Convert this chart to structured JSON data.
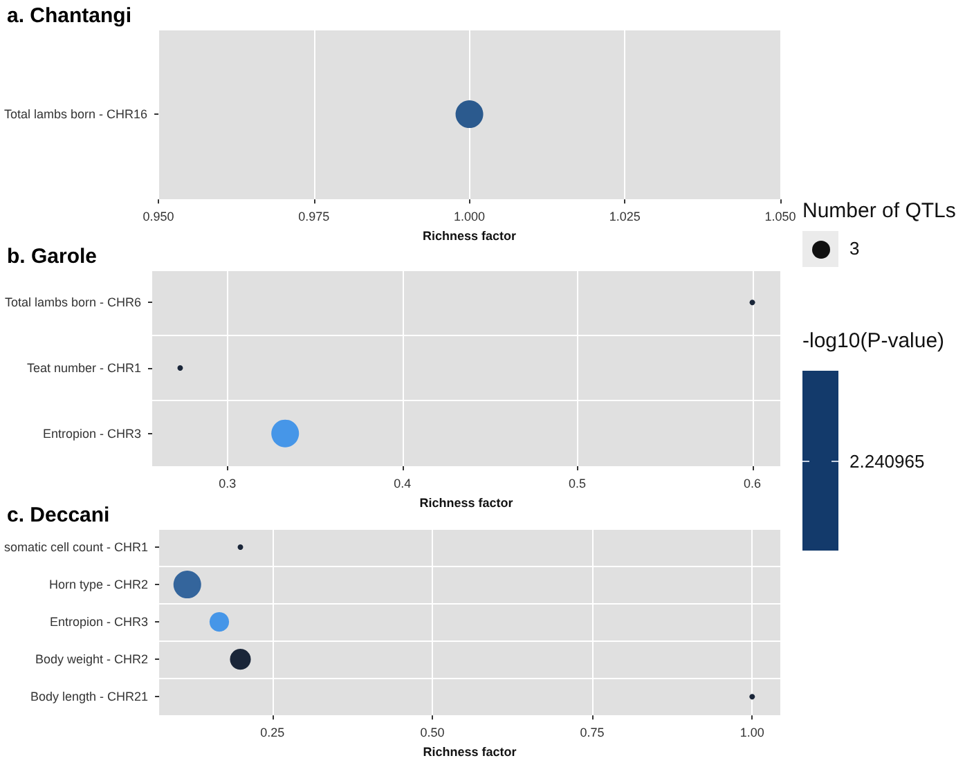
{
  "chart_data": [
    {
      "type": "bubble",
      "title": "a. Chantangi",
      "xlabel": "Richness factor",
      "orientation": "horizontal",
      "categories": [
        "Total lambs born - CHR16"
      ],
      "values": [
        1.0
      ],
      "sizes": [
        1
      ],
      "colors": [
        "#2b5a8e"
      ],
      "xlim": [
        0.95,
        1.05
      ],
      "xticks": [
        {
          "value": 0.95,
          "label": "0.950"
        },
        {
          "value": 0.975,
          "label": "0.975"
        },
        {
          "value": 1.0,
          "label": "1.000"
        },
        {
          "value": 1.025,
          "label": "1.025"
        },
        {
          "value": 1.05,
          "label": "1.050"
        }
      ],
      "grid": true
    },
    {
      "type": "bubble",
      "title": "b. Garole",
      "xlabel": "Richness factor",
      "orientation": "horizontal",
      "categories": [
        "Total lambs born - CHR6",
        "Teat number - CHR1",
        "Entropion - CHR3"
      ],
      "values": [
        0.6,
        0.273,
        0.333
      ],
      "sizes": [
        0.04,
        0.04,
        1
      ],
      "colors": [
        "#1a2639",
        "#1a2639",
        "#4696e8"
      ],
      "xlim": [
        0.257,
        0.616
      ],
      "xticks": [
        0.3,
        0.4,
        0.5,
        0.6
      ],
      "grid": true,
      "legend_title": "Number of QTLs",
      "clabel": "-log10(P-value)",
      "annotations": [
        "3",
        "2.240965"
      ]
    },
    {
      "type": "bubble",
      "title": "c. Deccani",
      "xlabel": "Richness factor",
      "orientation": "horizontal",
      "categories": [
        "somatic cell count - CHR1",
        "Horn type - CHR2",
        "Entropion - CHR3",
        "Body weight - CHR2",
        "Body length - CHR21"
      ],
      "values": [
        0.2,
        0.117,
        0.167,
        0.2,
        1.0
      ],
      "sizes": [
        0.04,
        1,
        0.5,
        0.57,
        0.04
      ],
      "colors": [
        "#1a2639",
        "#34659c",
        "#4696e8",
        "#1a2639",
        "#1a2639"
      ],
      "xlim": [
        0.073,
        1.044
      ],
      "xticks": [
        {
          "value": 0.25,
          "label": "0.25"
        },
        {
          "value": 0.5,
          "label": "0.50"
        },
        {
          "value": 0.75,
          "label": "0.75"
        },
        {
          "value": 1.0,
          "label": "1.00"
        }
      ],
      "grid": true
    }
  ]
}
